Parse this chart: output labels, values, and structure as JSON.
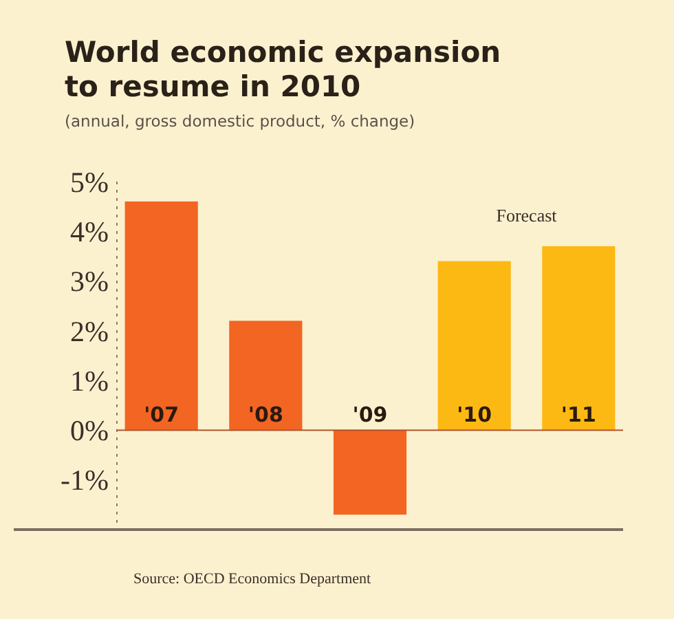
{
  "chart_data": {
    "type": "bar",
    "title": "World economic expansion to resume in 2010",
    "subtitle": "(annual, gross domestic product, % change)",
    "categories": [
      "'07",
      "'08",
      "'09",
      "'10",
      "'11"
    ],
    "values": [
      4.6,
      2.2,
      -1.7,
      3.4,
      3.7
    ],
    "colors": [
      "#f26522",
      "#f26522",
      "#f26522",
      "#fdb913",
      "#fdb913"
    ],
    "ylim": [
      -2,
      5
    ],
    "yticks": [
      {
        "value": -1,
        "label": "-1%"
      },
      {
        "value": 0,
        "label": "0%"
      },
      {
        "value": 1,
        "label": "1%"
      },
      {
        "value": 2,
        "label": "2%"
      },
      {
        "value": 3,
        "label": "3%"
      },
      {
        "value": 4,
        "label": "4%"
      },
      {
        "value": 5,
        "label": "5%"
      }
    ],
    "annotations": [
      "Forecast",
      "Source: OECD Economics Department"
    ]
  }
}
